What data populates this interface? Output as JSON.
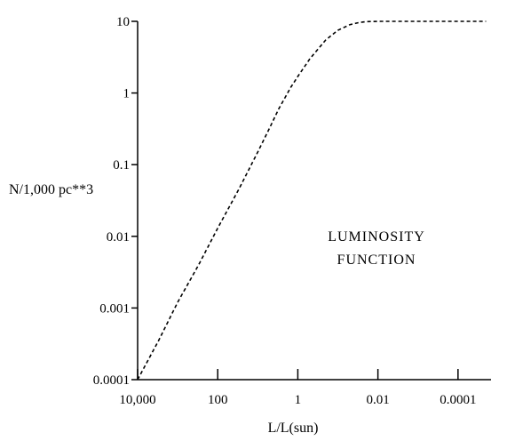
{
  "chart_data": {
    "type": "line",
    "title": "",
    "xlabel": "L/L(sun)",
    "ylabel": "N/1,000 pc**3",
    "x_scale": "log",
    "x_direction": "decreasing",
    "y_scale": "log",
    "xlim": [
      10000,
      1.5e-05
    ],
    "ylim": [
      0.0001,
      10
    ],
    "x_ticks": [
      10000,
      100,
      1,
      0.01,
      0.0001
    ],
    "x_tick_labels": [
      "10,000",
      "100",
      "1",
      "0.01",
      "0.0001"
    ],
    "y_ticks": [
      0.0001,
      0.001,
      0.01,
      0.1,
      1,
      10
    ],
    "y_tick_labels": [
      "0.0001",
      "0.001",
      "0.01",
      "0.1",
      "1",
      "10"
    ],
    "grid": false,
    "line_style": "dashed",
    "series": [
      {
        "x": [
          10000,
          3000,
          1000,
          300,
          100,
          30,
          10,
          5,
          3,
          1.5,
          1,
          0.5,
          0.2,
          0.1,
          0.05,
          0.03,
          0.02,
          0.01,
          0.003,
          0.001,
          0.0001,
          2e-05
        ],
        "y": [
          0.0001,
          0.00035,
          0.0012,
          0.004,
          0.013,
          0.045,
          0.15,
          0.33,
          0.6,
          1.2,
          1.7,
          3.0,
          5.5,
          7.5,
          9.0,
          9.6,
          9.9,
          10,
          10,
          10,
          10,
          10
        ]
      }
    ],
    "annotations": [
      "LUMINOSITY",
      "FUNCTION"
    ]
  }
}
